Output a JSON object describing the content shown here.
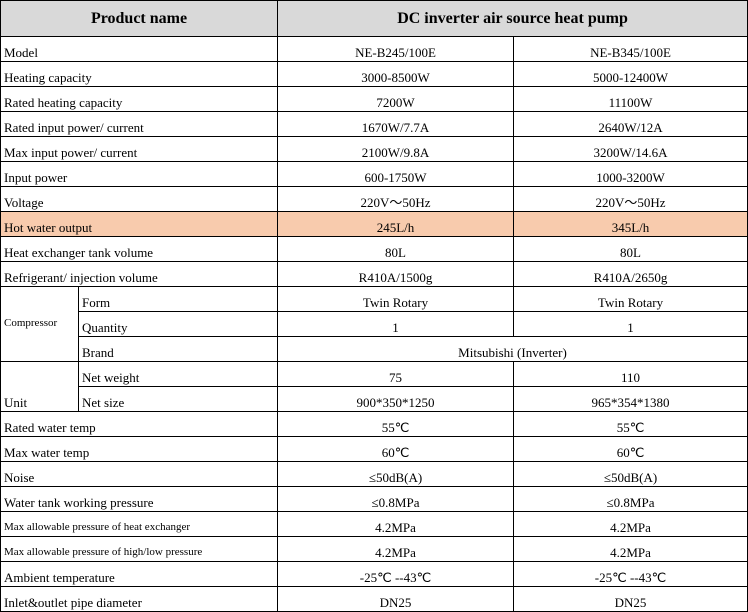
{
  "header": {
    "left": "Product name",
    "right": "DC inverter air source heat pump"
  },
  "rows": [
    {
      "label": "Model",
      "values": [
        "NE-B245/100E",
        "NE-B345/100E"
      ]
    },
    {
      "label": "Heating capacity",
      "values": [
        "3000-8500W",
        "5000-12400W"
      ]
    },
    {
      "label": "Rated heating capacity",
      "values": [
        "7200W",
        "11100W"
      ]
    },
    {
      "label": "Rated input power/ current",
      "values": [
        "1670W/7.7A",
        "2640W/12A"
      ]
    },
    {
      "label": "Max input power/ current",
      "values": [
        "2100W/9.8A",
        "3200W/14.6A"
      ]
    },
    {
      "label": "Input power",
      "values": [
        "600-1750W",
        "1000-3200W"
      ]
    },
    {
      "label": "Voltage",
      "values": [
        "220V～50Hz",
        "220V～50Hz"
      ]
    },
    {
      "label": "Hot water output",
      "values": [
        "245L/h",
        "345L/h"
      ]
    },
    {
      "label": "Heat exchanger tank volume",
      "values": [
        "80L",
        "80L"
      ]
    },
    {
      "label": "Refrigerant/ injection volume",
      "values": [
        "R410A/1500g",
        "R410A/2650g"
      ]
    },
    {
      "group": "Compressor",
      "items": [
        {
          "label": "Form",
          "values": [
            "Twin Rotary",
            "Twin Rotary"
          ]
        },
        {
          "label": "Quantity",
          "values": [
            "1",
            "1"
          ]
        },
        {
          "label": "Brand",
          "value": "Mitsubishi (Inverter)"
        }
      ]
    },
    {
      "group": "Unit",
      "items": [
        {
          "label": "Net weight",
          "values": [
            "75",
            "110"
          ]
        },
        {
          "label": "Net size",
          "values": [
            "900*350*1250",
            "965*354*1380"
          ]
        }
      ]
    },
    {
      "label": "Rated water temp",
      "values": [
        "55℃",
        "55℃"
      ]
    },
    {
      "label": "Max water temp",
      "values": [
        "60℃",
        "60℃"
      ]
    },
    {
      "label": "Noise",
      "values": [
        "≤50dB(A)",
        "≤50dB(A)"
      ]
    },
    {
      "label": "Water tank working pressure",
      "values": [
        "≤0.8MPa",
        "≤0.8MPa"
      ]
    },
    {
      "label": "Max allowable pressure of heat exchanger",
      "values": [
        "4.2MPa",
        "4.2MPa"
      ]
    },
    {
      "label": "Max allowable pressure of high/low pressure",
      "values": [
        "4.2MPa",
        "4.2MPa"
      ]
    },
    {
      "label": "Ambient temperature",
      "values": [
        "-25℃ --43℃",
        "-25℃ --43℃"
      ]
    },
    {
      "label": "Inlet&outlet pipe diameter",
      "values": [
        "DN25",
        "DN25"
      ]
    }
  ]
}
